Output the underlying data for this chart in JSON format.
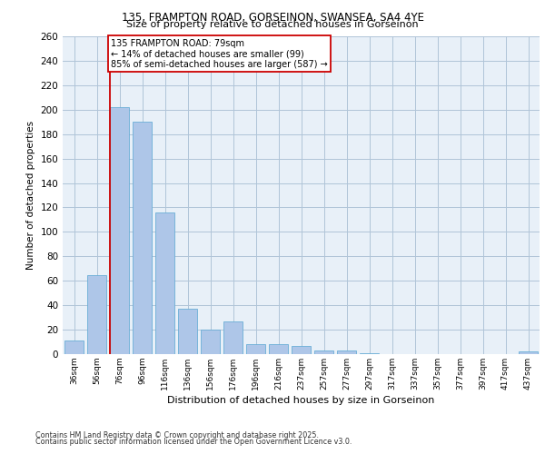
{
  "title1": "135, FRAMPTON ROAD, GORSEINON, SWANSEA, SA4 4YE",
  "title2": "Size of property relative to detached houses in Gorseinon",
  "xlabel": "Distribution of detached houses by size in Gorseinon",
  "ylabel": "Number of detached properties",
  "categories": [
    "36sqm",
    "56sqm",
    "76sqm",
    "96sqm",
    "116sqm",
    "136sqm",
    "156sqm",
    "176sqm",
    "196sqm",
    "216sqm",
    "237sqm",
    "257sqm",
    "277sqm",
    "297sqm",
    "317sqm",
    "337sqm",
    "357sqm",
    "377sqm",
    "397sqm",
    "417sqm",
    "437sqm"
  ],
  "values": [
    11,
    65,
    202,
    190,
    116,
    37,
    20,
    27,
    8,
    8,
    7,
    3,
    3,
    1,
    0,
    0,
    0,
    0,
    0,
    0,
    2
  ],
  "bar_color": "#aec6e8",
  "bar_edge_color": "#6aaed6",
  "vline_color": "#cc0000",
  "annotation_text": "135 FRAMPTON ROAD: 79sqm\n← 14% of detached houses are smaller (99)\n85% of semi-detached houses are larger (587) →",
  "annotation_box_color": "#ffffff",
  "annotation_box_edge": "#cc0000",
  "ylim": [
    0,
    260
  ],
  "yticks": [
    0,
    20,
    40,
    60,
    80,
    100,
    120,
    140,
    160,
    180,
    200,
    220,
    240,
    260
  ],
  "grid_color": "#b0c4d8",
  "bg_color": "#e8f0f8",
  "footer1": "Contains HM Land Registry data © Crown copyright and database right 2025.",
  "footer2": "Contains public sector information licensed under the Open Government Licence v3.0."
}
